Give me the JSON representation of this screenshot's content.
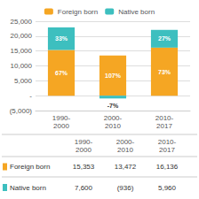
{
  "chart_data": {
    "type": "bar",
    "stacked": true,
    "grid": true,
    "legend": "top",
    "categories": [
      "1990-\n2000",
      "2000-\n2010",
      "2010-\n2017"
    ],
    "series": [
      {
        "name": "Foreign born",
        "color": "#F5A623",
        "values": [
          15353,
          13472,
          16136
        ],
        "share_labels": [
          "67%",
          "107%",
          "73%"
        ]
      },
      {
        "name": "Native born",
        "color": "#3DBFBF",
        "values": [
          7600,
          -936,
          5960
        ],
        "share_labels": [
          "33%",
          "-7%",
          "27%"
        ]
      }
    ],
    "ylim": [
      -5000,
      25000
    ],
    "yticks": [
      {
        "value": -5000,
        "label": "(5,000)"
      },
      {
        "value": 0,
        "label": "-"
      },
      {
        "value": 5000,
        "label": "5,000"
      },
      {
        "value": 10000,
        "label": "10,000"
      },
      {
        "value": 15000,
        "label": "15,000"
      },
      {
        "value": 20000,
        "label": "20,000"
      },
      {
        "value": 25000,
        "label": "25,000"
      }
    ],
    "table": {
      "columns": [
        "1990-\n2000",
        "2000-\n2010",
        "2010-\n2017"
      ],
      "rows": [
        {
          "name": "Foreign born",
          "color": "#F5A623",
          "cells": [
            "15,353",
            "13,472",
            "16,136"
          ]
        },
        {
          "name": "Native born",
          "color": "#3DBFBF",
          "cells": [
            "7,600",
            "(936)",
            "5,960"
          ]
        }
      ]
    }
  }
}
